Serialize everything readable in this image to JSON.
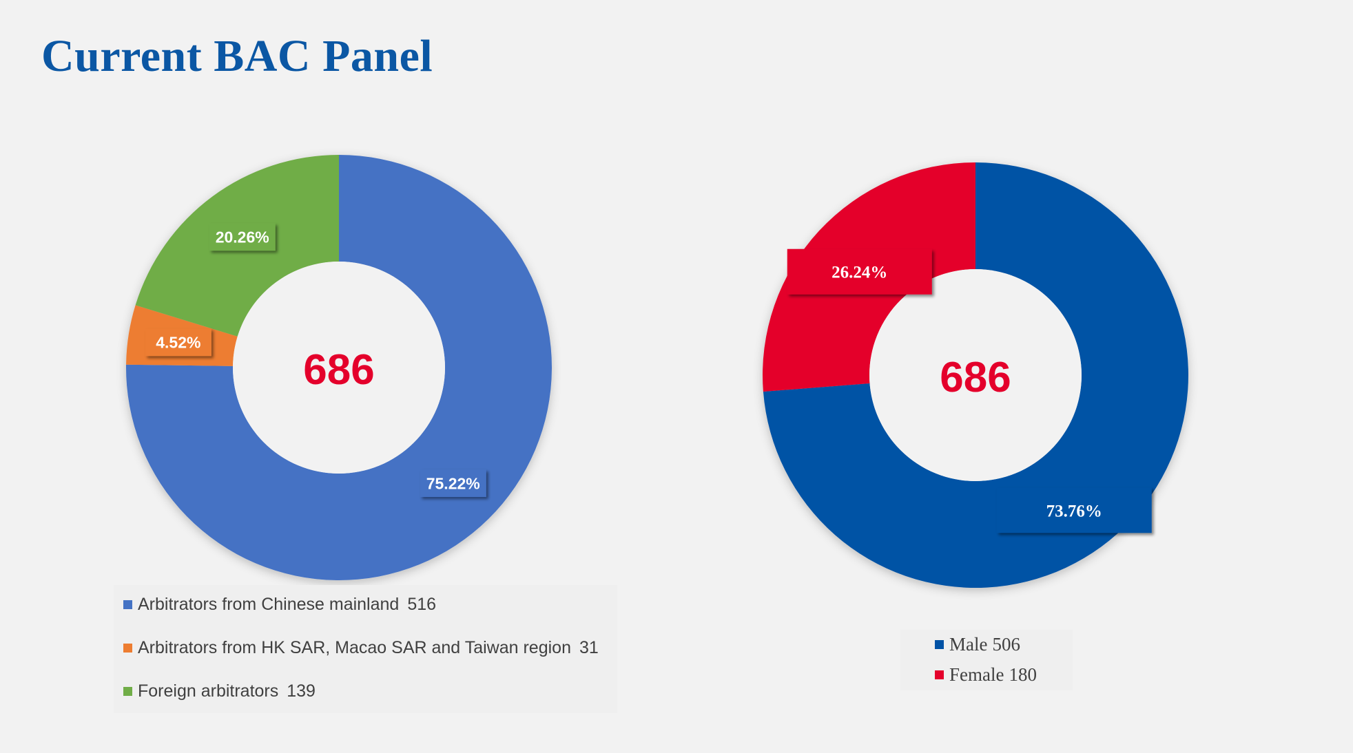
{
  "page": {
    "title": "Current BAC Panel"
  },
  "chart_data": [
    {
      "type": "pie",
      "variant": "donut",
      "center_label": "686",
      "categories": [
        "Arbitrators from Chinese mainland",
        "Arbitrators from HK SAR, Macao SAR and Taiwan region",
        "Foreign arbitrators"
      ],
      "values": [
        516,
        31,
        139
      ],
      "percent_labels": [
        "75.22%",
        "4.52%",
        "20.26%"
      ],
      "colors": [
        "#4472c4",
        "#ed7d31",
        "#70ad47"
      ],
      "legend_position": "bottom"
    },
    {
      "type": "pie",
      "variant": "donut",
      "center_label": "686",
      "categories": [
        "Male",
        "Female"
      ],
      "values": [
        506,
        180
      ],
      "percent_labels": [
        "73.76%",
        "26.24%"
      ],
      "colors": [
        "#0052a5",
        "#e4002b"
      ],
      "legend_position": "bottom"
    }
  ],
  "colors": {
    "title": "#0b57a4",
    "center_total": "#e4002b"
  }
}
